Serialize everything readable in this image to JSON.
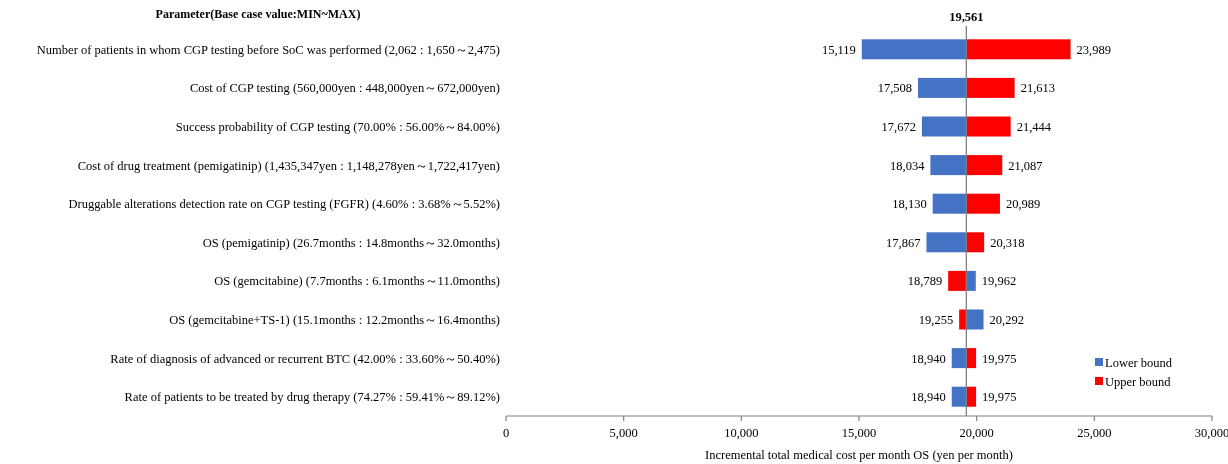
{
  "chart_data": {
    "type": "bar",
    "orientation": "horizontal",
    "ylabel": "Parameter(Base case value:MIN~MAX)",
    "xlabel": "Incremental total medical cost per month OS (yen per month)",
    "categories": [
      "Number of patients in whom CGP testing before SoC was performed (2,062 : 1,650～2,475)",
      "Cost of CGP testing (560,000yen : 448,000yen～672,000yen)",
      "Success probability of CGP testing (70.00% : 56.00%～84.00%)",
      "Cost of drug treatment (pemigatinip) (1,435,347yen : 1,148,278yen～1,722,417yen)",
      "Druggable alterations detection rate on CGP testing (FGFR) (4.60% : 3.68%～5.52%)",
      "OS (pemigatinip) (26.7months : 14.8months～32.0months)",
      "OS (gemcitabine) (7.7months : 6.1months～11.0months)",
      "OS (gemcitabine+TS-1) (15.1months : 12.2months～16.4months)",
      "Rate of diagnosis of advanced or recurrent BTC (42.00% : 33.60%～50.40%)",
      "Rate of patients to be treated by drug therapy (74.27% : 59.41%～89.12%)"
    ],
    "series": [
      {
        "name": "Lower bound",
        "color": "#4472c4",
        "base": [
          19561,
          19561,
          19561,
          19561,
          19561,
          19561,
          19561,
          19561,
          19561,
          19561
        ],
        "values": [
          -4442,
          -2053,
          -1889,
          -1527,
          -1431,
          -1694,
          401,
          731,
          -621,
          -621
        ],
        "value_labels": [
          "15,119",
          "17,508",
          "17,672",
          "18,034",
          "18,130",
          "17,867",
          "19,962",
          "20,292",
          "18,940",
          "18,940"
        ]
      },
      {
        "name": "Upper bound",
        "color": "#ff0000",
        "base": [
          19561,
          19561,
          19561,
          19561,
          19561,
          19561,
          19561,
          19561,
          19561,
          19561
        ],
        "values": [
          4428,
          2052,
          1883,
          1526,
          1428,
          757,
          -772,
          -306,
          414,
          414
        ],
        "value_labels": [
          "23,989",
          "21,613",
          "21,444",
          "21,087",
          "20,989",
          "20,318",
          "18,789",
          "19,255",
          "19,975",
          "19,975"
        ]
      }
    ],
    "ref_lines": [
      {
        "axis": "x",
        "value": 19561,
        "label": "19,561",
        "color": "#808080"
      }
    ],
    "xlim": [
      0,
      30000
    ],
    "xticks": [
      0,
      {
        "value": 5000,
        "label": "5,000"
      },
      {
        "value": 10000,
        "label": "10,000"
      },
      {
        "value": 15000,
        "label": "15,000"
      },
      {
        "value": 20000,
        "label": "20,000"
      },
      {
        "value": 25000,
        "label": "25,000"
      },
      {
        "value": 30000,
        "label": "30,000"
      }
    ],
    "grid": false,
    "legend": "bottom right"
  }
}
